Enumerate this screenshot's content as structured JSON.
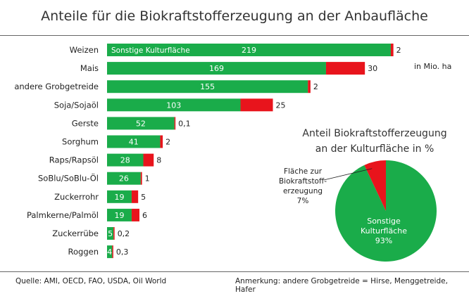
{
  "chart_data": [
    {
      "type": "bar",
      "orientation": "horizontal",
      "stacked": true,
      "title": "Anteile für die Biokraftstofferzeugung an der Anbaufläche",
      "unit": "in Mio. ha",
      "categories": [
        "Weizen",
        "Mais",
        "andere Grobgetreide",
        "Soja/Sojaöl",
        "Gerste",
        "Sorghum",
        "Raps/Rapsöl",
        "SoBlu/SoBlu-Öl",
        "Zuckerrohr",
        "Palmkerne/Palmöl",
        "Zuckerrübe",
        "Roggen"
      ],
      "series": [
        {
          "name": "Sonstige Kulturfläche",
          "color": "#1aac4a",
          "values": [
            219,
            169,
            155,
            103,
            52,
            41,
            28,
            26,
            19,
            19,
            5,
            4
          ]
        },
        {
          "color": "#e8141c",
          "values": [
            2,
            30,
            2,
            25,
            0.1,
            2,
            8,
            1,
            5,
            6,
            0.2,
            0.3
          ],
          "labels": [
            "2",
            "30",
            "2",
            "25",
            "0,1",
            "2",
            "8",
            "1",
            "5",
            "6",
            "0,2",
            "0,3"
          ]
        }
      ],
      "grid": false
    },
    {
      "type": "pie",
      "title": "Anteil Biokraftstofferzeugung an der Kulturfläche in %",
      "slices": [
        {
          "label": "Fläche zur Biokraftstoff-erzeugung",
          "value": 7,
          "color": "#e8141c"
        },
        {
          "label": "Sonstige Kulturfläche",
          "value": 93,
          "color": "#1aac4a"
        }
      ]
    }
  ],
  "text": {
    "title": "Anteile für die Biokraftstofferzeugung an der Anbaufläche",
    "unit": "in Mio. ha",
    "pie_title_1": "Anteil Biokraftstofferzeugung",
    "pie_title_2": "an der Kulturfläche in %",
    "pie_red_lines": [
      "Fläche zur",
      "Biokraftstoff-",
      "erzeugung",
      "7%"
    ],
    "pie_green_lines": [
      "Sonstige",
      "Kulturfläche",
      "93%"
    ],
    "source": "Quelle:  AMI, OECD, FAO, USDA, Oil World",
    "note": "Anmerkung:  andere Grobgetreide = Hirse, Menggetreide, Hafer"
  }
}
